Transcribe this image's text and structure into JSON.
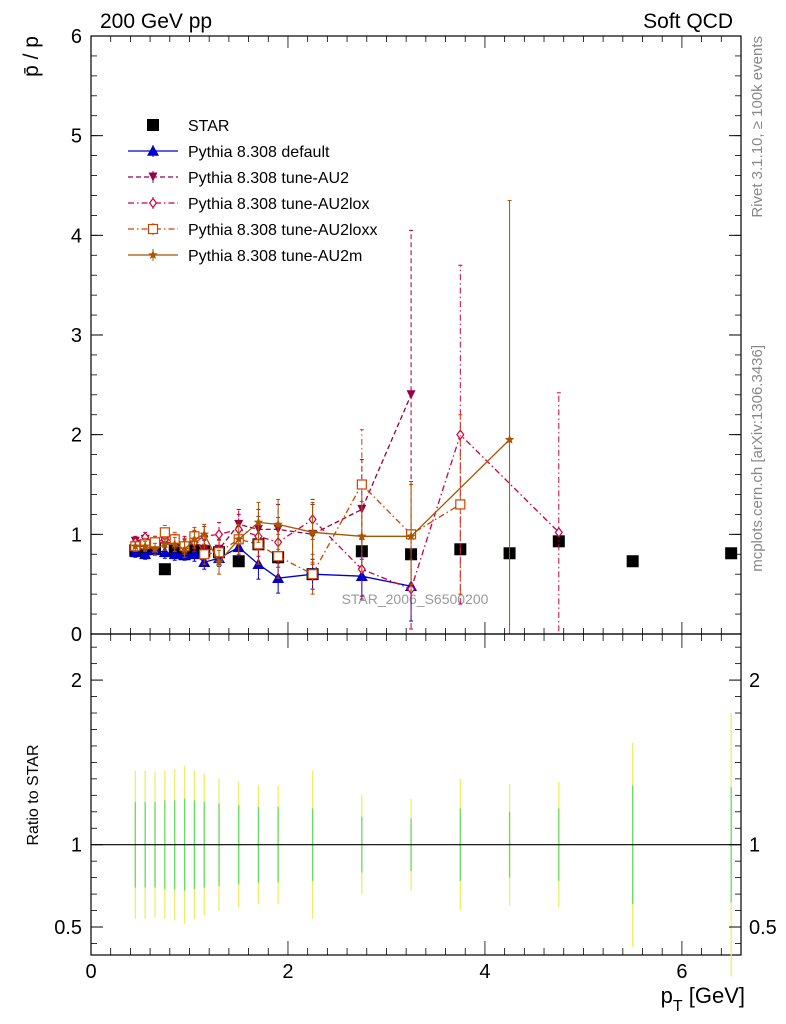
{
  "header": {
    "left_title": "200 GeV pp",
    "right_title": "Soft QCD",
    "side_rivet": "Rivet 3.1.10, ≥ 100k events",
    "side_mcplots": "mcplots.cern.ch [arXiv:1306.3436]",
    "watermark": "STAR_2006_S6500200"
  },
  "chart_data": [
    {
      "type": "scatter",
      "ylabel": "p̄ / p",
      "xlim": [
        0,
        6.6
      ],
      "ylim": [
        0,
        6
      ],
      "y_ticks": [
        0,
        1,
        2,
        3,
        4,
        5,
        6
      ],
      "y_tick_labels": [
        "0",
        "1",
        "2",
        "3",
        "4",
        "5",
        "6"
      ],
      "legend_placement": "top-left",
      "series": [
        {
          "name": "STAR",
          "color": "#000000",
          "marker": "square",
          "x": [
            0.45,
            0.55,
            0.65,
            0.75,
            0.85,
            0.95,
            1.05,
            1.15,
            1.3,
            1.5,
            1.7,
            1.9,
            2.25,
            2.75,
            3.25,
            3.75,
            4.25,
            4.75,
            5.5,
            6.5
          ],
          "y": [
            0.84,
            0.85,
            0.86,
            0.65,
            0.84,
            0.8,
            0.84,
            0.83,
            0.82,
            0.73,
            0.9,
            0.77,
            0.6,
            0.83,
            0.8,
            0.85,
            0.81,
            0.93,
            0.73,
            0.81
          ]
        },
        {
          "name": "Pythia 8.308 default",
          "color": "#0000cc",
          "marker": "triangle-up",
          "line": "solid",
          "x": [
            0.45,
            0.55,
            0.65,
            0.75,
            0.85,
            0.95,
            1.05,
            1.15,
            1.3,
            1.5,
            1.7,
            1.9,
            2.25,
            2.75,
            3.25
          ],
          "y": [
            0.82,
            0.8,
            0.84,
            0.82,
            0.8,
            0.8,
            0.8,
            0.72,
            0.76,
            0.87,
            0.7,
            0.56,
            0.6,
            0.58,
            0.48
          ],
          "err": [
            0.05,
            0.05,
            0.05,
            0.06,
            0.06,
            0.06,
            0.07,
            0.07,
            0.08,
            0.1,
            0.15,
            0.15,
            0.15,
            0.2,
            0.35
          ]
        },
        {
          "name": "Pythia 8.308 tune-AU2",
          "color": "#990044",
          "marker": "triangle-down",
          "line": "dashed",
          "x": [
            0.45,
            0.55,
            0.65,
            0.75,
            0.85,
            0.95,
            1.05,
            1.15,
            1.3,
            1.5,
            1.7,
            1.9,
            2.25,
            2.75,
            3.25
          ],
          "y": [
            0.93,
            0.95,
            0.9,
            0.93,
            0.9,
            0.88,
            0.95,
            0.85,
            0.85,
            1.1,
            1.05,
            1.05,
            1.0,
            1.25,
            2.4
          ],
          "err": [
            0.05,
            0.05,
            0.06,
            0.06,
            0.07,
            0.07,
            0.08,
            0.09,
            0.1,
            0.15,
            0.2,
            0.25,
            0.3,
            0.5,
            1.65
          ]
        },
        {
          "name": "Pythia 8.308 tune-AU2lox",
          "color": "#cc0044",
          "marker": "diamond-open",
          "line": "dash-dot",
          "x": [
            0.45,
            0.55,
            0.65,
            0.75,
            0.85,
            0.95,
            1.05,
            1.15,
            1.3,
            1.5,
            1.7,
            1.9,
            2.25,
            2.75,
            3.25,
            3.75,
            4.75
          ],
          "y": [
            0.92,
            0.97,
            0.92,
            0.95,
            0.93,
            0.9,
            0.92,
            0.98,
            1.0,
            1.05,
            0.98,
            0.92,
            1.15,
            0.65,
            0.45,
            2.0,
            1.02
          ],
          "err": [
            0.05,
            0.05,
            0.06,
            0.06,
            0.07,
            0.08,
            0.09,
            0.1,
            0.12,
            0.15,
            0.2,
            0.25,
            0.2,
            0.3,
            0.4,
            1.7,
            1.4
          ]
        },
        {
          "name": "Pythia 8.308 tune-AU2loxx",
          "color": "#cc4400",
          "marker": "square-open",
          "line": "dash-dot",
          "x": [
            0.45,
            0.55,
            0.65,
            0.75,
            0.85,
            0.95,
            1.05,
            1.15,
            1.3,
            1.5,
            1.7,
            1.9,
            2.25,
            2.75,
            3.25,
            3.75
          ],
          "y": [
            0.88,
            0.9,
            0.92,
            1.02,
            0.95,
            0.88,
            0.98,
            0.8,
            0.82,
            0.95,
            0.9,
            0.78,
            0.6,
            1.5,
            1.0,
            1.3
          ],
          "err": [
            0.05,
            0.06,
            0.06,
            0.07,
            0.07,
            0.08,
            0.09,
            0.1,
            0.12,
            0.15,
            0.2,
            0.22,
            0.2,
            0.55,
            0.5,
            0.9
          ]
        },
        {
          "name": "Pythia 8.308 tune-AU2m",
          "color": "#aa5500",
          "marker": "star",
          "line": "solid",
          "x": [
            0.45,
            0.55,
            0.65,
            0.75,
            0.85,
            0.95,
            1.05,
            1.15,
            1.3,
            1.5,
            1.7,
            1.9,
            2.25,
            2.75,
            3.25,
            4.25
          ],
          "y": [
            0.88,
            0.88,
            0.85,
            0.9,
            0.9,
            0.85,
            0.95,
            1.0,
            0.72,
            0.95,
            1.12,
            1.1,
            1.02,
            0.98,
            0.98,
            1.95
          ],
          "err": [
            0.05,
            0.05,
            0.06,
            0.06,
            0.07,
            0.08,
            0.09,
            0.1,
            0.12,
            0.15,
            0.2,
            0.25,
            0.3,
            0.35,
            0.55,
            2.4
          ]
        }
      ]
    },
    {
      "type": "scatter",
      "ylabel": "Ratio to STAR",
      "xlabel": "p_T [GeV]",
      "xlim": [
        0,
        6.6
      ],
      "ylim": [
        0.33,
        2.28
      ],
      "x_ticks": [
        0,
        2,
        4,
        6
      ],
      "x_tick_labels": [
        "0",
        "2",
        "4",
        "6"
      ],
      "y_ticks": [
        0.5,
        1,
        2
      ],
      "y_tick_labels": [
        "0.5",
        "1",
        "2"
      ],
      "reference_line": 1,
      "error_bands": {
        "color_inner": "#66dd66",
        "color_outer": "#eeee66",
        "x": [
          0.45,
          0.55,
          0.65,
          0.75,
          0.85,
          0.95,
          1.05,
          1.15,
          1.3,
          1.5,
          1.7,
          1.9,
          2.25,
          2.75,
          3.25,
          3.75,
          4.25,
          4.75,
          5.5,
          6.5
        ],
        "inner": [
          0.26,
          0.26,
          0.26,
          0.27,
          0.27,
          0.28,
          0.27,
          0.26,
          0.25,
          0.24,
          0.23,
          0.23,
          0.22,
          0.17,
          0.16,
          0.22,
          0.2,
          0.22,
          0.36,
          0.35
        ],
        "outer": [
          0.45,
          0.45,
          0.44,
          0.45,
          0.46,
          0.48,
          0.45,
          0.43,
          0.4,
          0.38,
          0.36,
          0.36,
          0.45,
          0.3,
          0.28,
          0.4,
          0.37,
          0.38,
          0.62,
          0.8
        ]
      }
    }
  ]
}
